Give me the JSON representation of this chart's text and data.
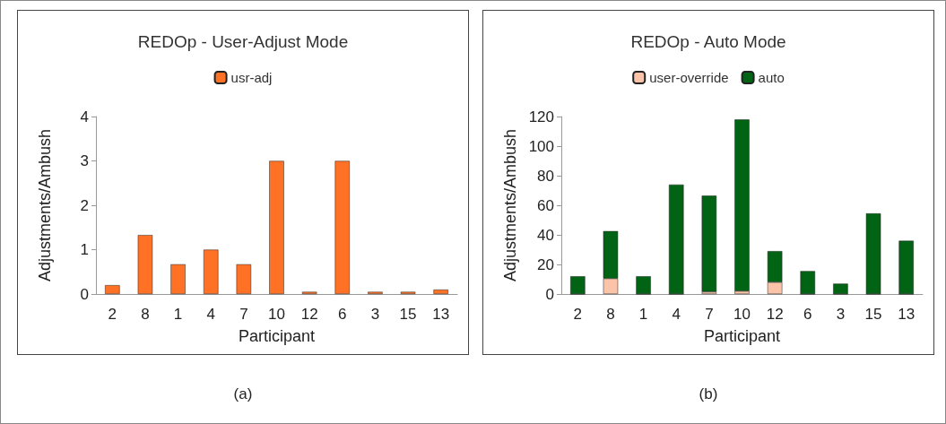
{
  "chart_data": [
    {
      "type": "bar",
      "title": "REDOp - User-Adjust Mode",
      "xlabel": "Participant",
      "ylabel": "Adjustments/Ambush",
      "categories": [
        "2",
        "8",
        "1",
        "4",
        "7",
        "10",
        "12",
        "6",
        "3",
        "15",
        "13"
      ],
      "series": [
        {
          "name": "usr-adj",
          "color": "#ff7125",
          "values": [
            0.2,
            1.33,
            0.67,
            1,
            0.67,
            3,
            0.05,
            3,
            0.05,
            0.05,
            0.1
          ]
        }
      ],
      "ylim": [
        0,
        4
      ],
      "yticks": [
        0,
        1,
        2,
        3,
        4
      ],
      "grid": false,
      "legend": "top",
      "annotations": [
        "(a)"
      ]
    },
    {
      "type": "bar",
      "title": "REDOp - Auto Mode",
      "xlabel": "Participant",
      "ylabel": "Adjustments/Ambush",
      "categories": [
        "2",
        "8",
        "1",
        "4",
        "7",
        "10",
        "12",
        "6",
        "3",
        "15",
        "13"
      ],
      "stacked": true,
      "series": [
        {
          "name": "user-override",
          "color": "#fbc4a8",
          "values": [
            0,
            10.5,
            0,
            0,
            1.5,
            2,
            8,
            0,
            0,
            0,
            0
          ]
        },
        {
          "name": "auto",
          "color": "#006414",
          "values": [
            12,
            32,
            12,
            74,
            65,
            116,
            21,
            15.5,
            7,
            54.5,
            36
          ]
        }
      ],
      "ylim": [
        0,
        120
      ],
      "yticks": [
        0,
        20,
        40,
        60,
        80,
        100,
        120
      ],
      "grid": false,
      "legend": "top",
      "annotations": [
        "(b)"
      ]
    }
  ]
}
